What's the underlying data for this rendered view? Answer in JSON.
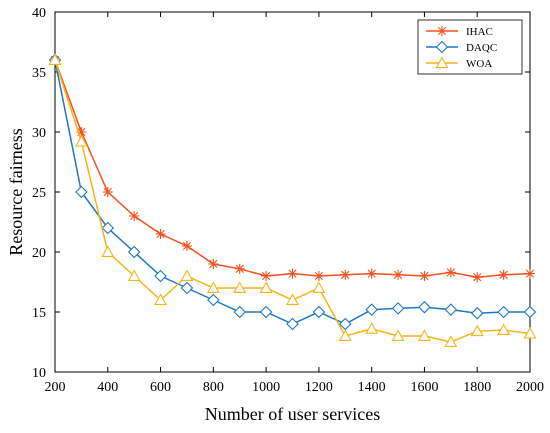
{
  "chart_data": {
    "type": "line",
    "title": "",
    "xlabel": "Number of user services",
    "ylabel": "Resource fairness",
    "xlim": [
      200,
      2000
    ],
    "ylim": [
      10,
      40
    ],
    "xticks": [
      200,
      400,
      600,
      800,
      1000,
      1200,
      1400,
      1600,
      1800,
      2000
    ],
    "yticks": [
      10,
      15,
      20,
      25,
      30,
      35,
      40
    ],
    "grid": false,
    "legend_position": "top-right",
    "x": [
      200,
      300,
      400,
      500,
      600,
      700,
      800,
      900,
      1000,
      1100,
      1200,
      1300,
      1400,
      1500,
      1600,
      1700,
      1800,
      1900,
      2000
    ],
    "series": [
      {
        "name": "IHAC",
        "color": "#f4511e",
        "marker": "asterisk",
        "values": [
          36,
          30,
          25,
          23,
          21.5,
          20.5,
          19,
          18.6,
          18,
          18.2,
          18,
          18.1,
          18.2,
          18.1,
          18,
          18.3,
          17.9,
          18.1,
          18.2
        ]
      },
      {
        "name": "DAQC",
        "color": "#1e77c3",
        "marker": "diamond",
        "values": [
          36,
          25,
          22,
          20,
          18,
          17,
          16,
          15,
          15,
          14,
          15,
          14,
          15.2,
          15.3,
          15.4,
          15.2,
          14.9,
          15,
          15
        ]
      },
      {
        "name": "WOA",
        "color": "#f5b416",
        "marker": "triangle",
        "values": [
          36,
          29.2,
          20,
          18,
          16,
          18,
          17,
          17,
          17,
          16,
          17,
          13,
          13.6,
          13,
          13,
          12.5,
          13.4,
          13.5,
          13.2
        ]
      }
    ]
  }
}
